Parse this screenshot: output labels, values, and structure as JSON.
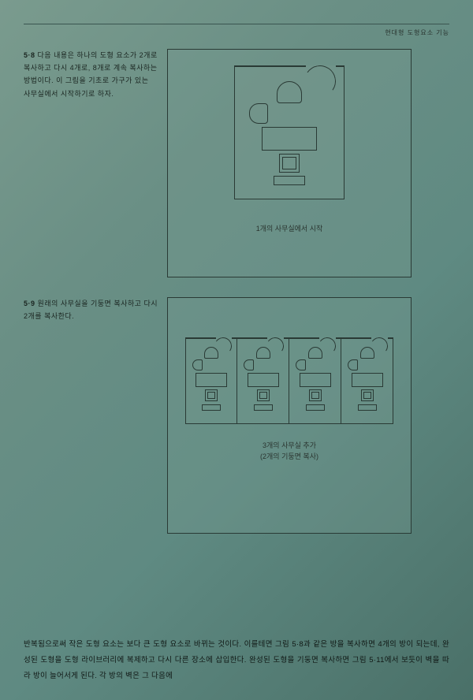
{
  "header": {
    "right_text": "현대형 도형요소 기능"
  },
  "section1": {
    "number": "5·8",
    "text": "다음 내용은 하나의 도형 요소가 2개로 복사하고 다시 4개로, 8개로 계속 복사하는 방법이다. 이 그림을 기초로 가구가 있는 사무실에서 시작하기로 하자.",
    "caption": "1개의 사무실에서 시작"
  },
  "section2": {
    "number": "5·9",
    "text": "원래의 사무실을 기둥면 복사하고 다시 2개를 복사한다.",
    "caption_line1": "3개의 사무실 추가",
    "caption_line2": "(2개의 기둥면 복사)"
  },
  "bottom": {
    "text": "반복됨으로써 작은 도형 요소는 보다 큰 도형 요소로 바뀌는 것이다. 이를테면 그림 5·8과 같은 방을 복사하면 4개의 방이 되는데, 완성된 도형을 도형 라이브러리에 복제하고 다시 다른 장소에 삽입한다. 완성된 도형을 기둥면 복사하면 그림 5·11에서 보듯이 벽을 따라 방이 늘어서게 된다. 각 방의 벽은 그 다음에"
  },
  "colors": {
    "border": "#2a3a35",
    "text": "#1a2520",
    "bg_start": "#7a9b8e",
    "bg_end": "#4a7068"
  }
}
